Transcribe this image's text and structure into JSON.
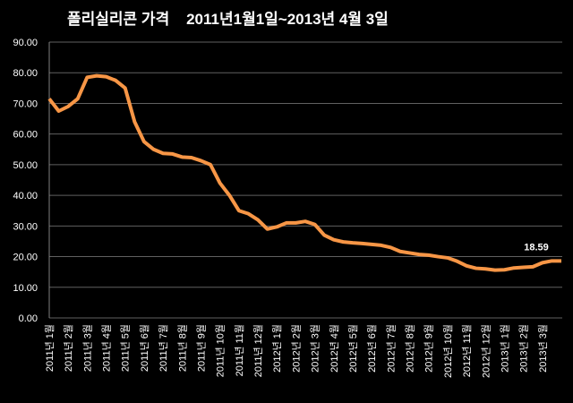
{
  "chart_data": {
    "type": "line",
    "title": "폴리실리콘 가격    2011년1월1일~2013년 4월 3일",
    "categories": [
      "2011년 1월",
      null,
      "2011년 2월",
      null,
      "2011년 3월",
      null,
      "2011년 4월",
      null,
      "2011년 5월",
      null,
      "2011년 6월",
      null,
      "2011년 7월",
      null,
      "2011년 8월",
      null,
      "2011년 9월",
      null,
      "2011년 10월",
      null,
      "2011년 11월",
      null,
      "2011년 12월",
      null,
      "2012년 1월",
      null,
      "2012년 2월",
      null,
      "2012년 3월",
      null,
      "2012년 4월",
      null,
      "2012년 5월",
      null,
      "2012년 6월",
      null,
      "2012년 7월",
      null,
      "2012년 8월",
      null,
      "2012년 9월",
      null,
      "2012년 10월",
      null,
      "2012년 11월",
      null,
      "2012년 12월",
      null,
      "2013년 1월",
      null,
      "2013년 2월",
      null,
      "2013년 3월",
      null,
      null
    ],
    "values": [
      71.5,
      67.5,
      69,
      71.5,
      78.5,
      79,
      78.7,
      77.5,
      75,
      64,
      57.5,
      55,
      53.7,
      53.5,
      52.5,
      52.3,
      51.3,
      50,
      44,
      40,
      35,
      34,
      32,
      29,
      29.7,
      31,
      31,
      31.5,
      30.5,
      27,
      25.5,
      24.8,
      24.5,
      24.3,
      24,
      23.7,
      23,
      21.7,
      21.2,
      20.7,
      20.5,
      20,
      19.6,
      18.5,
      17,
      16.2,
      16,
      15.6,
      15.7,
      16.3,
      16.5,
      16.7,
      18,
      18.6,
      18.59
    ],
    "color": "#f79646",
    "ylim": [
      0,
      90
    ],
    "yticks": [
      {
        "value": 0,
        "label": "0.00"
      },
      {
        "value": 10,
        "label": "10.00"
      },
      {
        "value": 20,
        "label": "20.00"
      },
      {
        "value": 30,
        "label": "30.00"
      },
      {
        "value": 40,
        "label": "40.00"
      },
      {
        "value": 50,
        "label": "50.00"
      },
      {
        "value": 60,
        "label": "60.00"
      },
      {
        "value": 70,
        "label": "70.00"
      },
      {
        "value": 80,
        "label": "80.00"
      },
      {
        "value": 90,
        "label": "90.00"
      }
    ],
    "grid": true
  }
}
